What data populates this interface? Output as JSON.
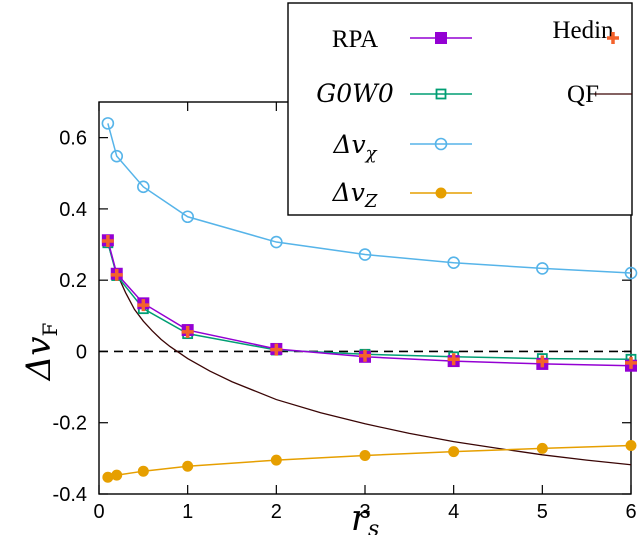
{
  "chart_data": {
    "type": "line",
    "xlabel": "r",
    "xlabel_sub": "s",
    "ylabel": "Δv",
    "ylabel_sub": "F",
    "xlim": [
      0,
      6
    ],
    "ylim": [
      -0.4,
      0.7
    ],
    "xticks": [
      "0",
      "1",
      "2",
      "3",
      "4",
      "5",
      "6"
    ],
    "yticks": [
      "-0.4",
      "-0.2",
      "0",
      "0.2",
      "0.4",
      "0.6"
    ],
    "grid": false,
    "legend_position": "top-right",
    "zero_line": "dashed",
    "series": [
      {
        "name": "RPA",
        "color": "#9400d3",
        "marker": "filled-square",
        "x": [
          0.1,
          0.2,
          0.5,
          1,
          2,
          3,
          4,
          5,
          6
        ],
        "y": [
          0.312,
          0.218,
          0.135,
          0.06,
          0.007,
          -0.015,
          -0.027,
          -0.035,
          -0.04
        ]
      },
      {
        "name": "G0W0",
        "color": "#009e73",
        "marker": "open-square",
        "x": [
          0.1,
          0.2,
          0.5,
          1,
          2,
          3,
          4,
          5,
          6
        ],
        "y": [
          0.305,
          0.213,
          0.12,
          0.05,
          0.004,
          -0.008,
          -0.015,
          -0.02,
          -0.022
        ]
      },
      {
        "name": "Δv_χ",
        "color": "#56b4e9",
        "marker": "open-circle",
        "x": [
          0.1,
          0.2,
          0.5,
          1,
          2,
          3,
          4,
          5,
          6
        ],
        "y": [
          0.64,
          0.548,
          0.462,
          0.378,
          0.307,
          0.272,
          0.249,
          0.233,
          0.22
        ]
      },
      {
        "name": "Δv_Z",
        "color": "#e69f00",
        "marker": "filled-circle",
        "x": [
          0.1,
          0.2,
          0.5,
          1,
          2,
          3,
          4,
          5,
          6
        ],
        "y": [
          -0.353,
          -0.347,
          -0.336,
          -0.322,
          -0.305,
          -0.292,
          -0.281,
          -0.272,
          -0.264
        ]
      },
      {
        "name": "Hedin",
        "color": "#f4622b",
        "marker": "plus",
        "x": [
          0.1,
          0.2,
          0.5,
          1,
          2,
          3,
          4,
          5,
          6
        ],
        "y": [
          0.31,
          0.215,
          0.13,
          0.055,
          0.005,
          -0.012,
          -0.022,
          -0.028,
          -0.032
        ]
      },
      {
        "name": "QF",
        "color": "#3a0505",
        "marker": "none",
        "x": [
          0.1,
          0.15,
          0.2,
          0.3,
          0.4,
          0.5,
          0.6,
          0.7,
          0.8,
          1,
          1.25,
          1.5,
          2,
          2.5,
          3,
          3.5,
          4,
          4.5,
          5,
          5.5,
          6
        ],
        "y": [
          0.305,
          0.26,
          0.22,
          0.165,
          0.118,
          0.085,
          0.058,
          0.034,
          0.014,
          -0.02,
          -0.055,
          -0.085,
          -0.135,
          -0.172,
          -0.203,
          -0.23,
          -0.253,
          -0.272,
          -0.29,
          -0.305,
          -0.318
        ]
      }
    ],
    "legend_items": [
      {
        "label": "RPA",
        "sub": "",
        "series": 0
      },
      {
        "label": "G0W0",
        "sub": "",
        "series": 1
      },
      {
        "label": "Δv",
        "sub": "χ",
        "series": 2
      },
      {
        "label": "Δv",
        "sub": "Z",
        "series": 3
      },
      {
        "label": "Hedin",
        "sub": "",
        "series": 4
      },
      {
        "label": "QF",
        "sub": "",
        "series": 5
      }
    ]
  }
}
